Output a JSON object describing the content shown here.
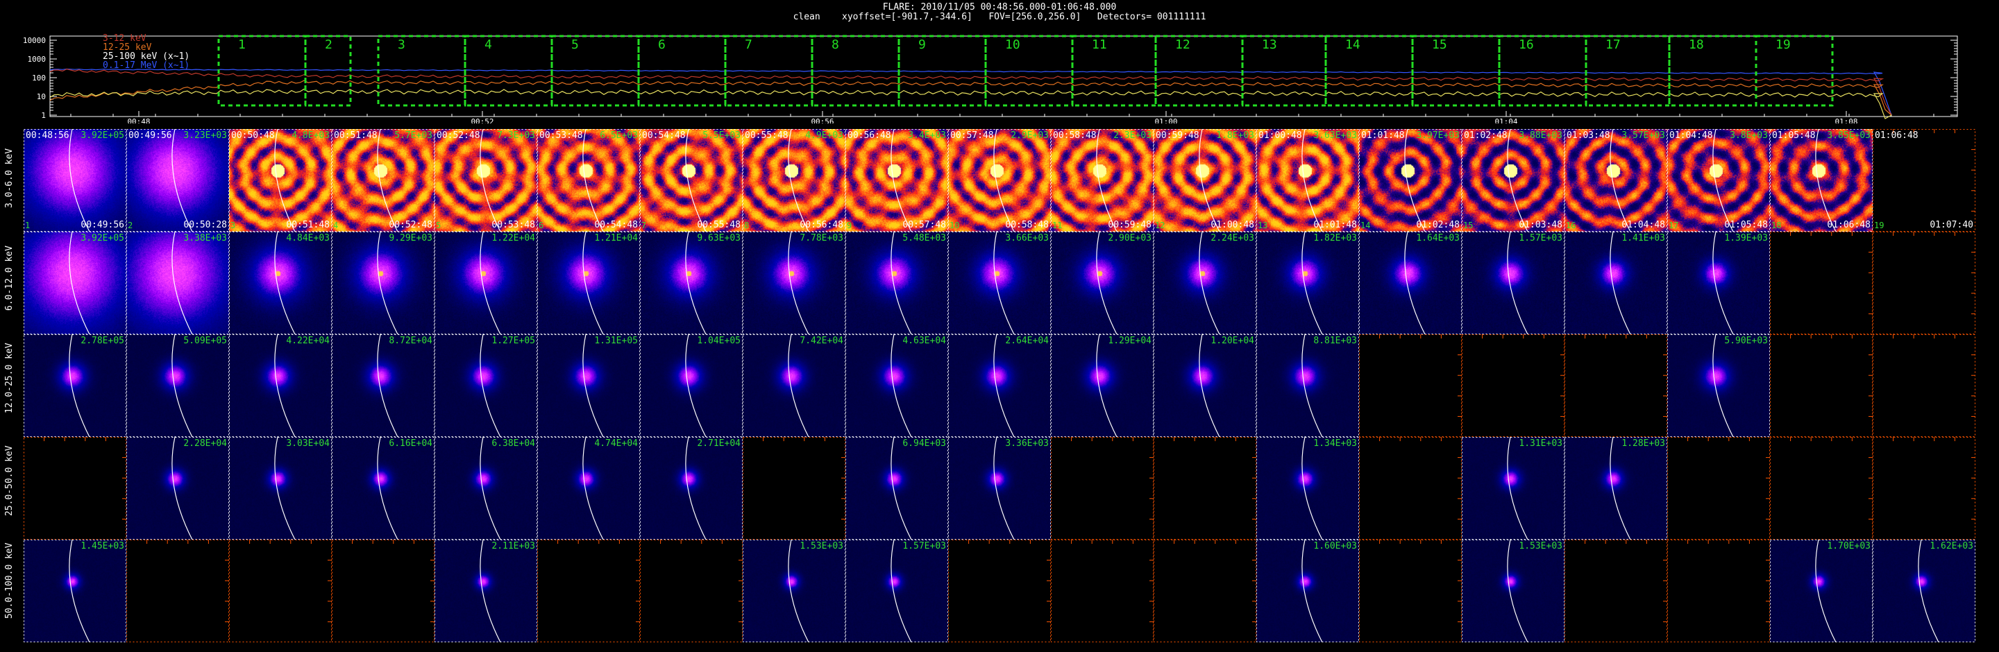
{
  "title_line1": "FLARE: 2010/11/05 00:48:56.000-01:06:48.000",
  "title_line2": "clean    xyoffset=[-901.7,-344.6]   FOV=[256.0,256.0]   Detectors= 001111111",
  "lightcurve": {
    "y_ticks": [
      "10000",
      "1000",
      "100",
      "10",
      "1"
    ],
    "x_ticks": [
      "00:48",
      "00:52",
      "00:56",
      "01:00",
      "01:04",
      "01:08"
    ],
    "legend": [
      {
        "label": "3-12 keV",
        "color": "#c0392b"
      },
      {
        "label": "12-25 keV",
        "color": "#e07020"
      },
      {
        "label": "25-100 keV (x~1)",
        "color": "#e8e060"
      },
      {
        "label": "0.1-17 MeV (x~1)",
        "color": "#3355ff"
      }
    ],
    "intervals": [
      "1",
      "2",
      "3",
      "4",
      "5",
      "6",
      "7",
      "8",
      "9",
      "10",
      "11",
      "12",
      "13",
      "14",
      "15",
      "16",
      "17",
      "18",
      "19"
    ]
  },
  "colors": {
    "interval": "#22dd22",
    "peak": "#33dd33",
    "grid_white": "#ffffff",
    "grid_orange": "#ff5500"
  },
  "energy_bands": [
    "3.0-6.0 keV",
    "6.0-12.0 keV",
    "12.0-25.0 keV",
    "25.0-50.0 keV",
    "50.0-100.0 keV"
  ],
  "time_starts": [
    "00:48:56",
    "00:49:56",
    "00:50:48",
    "00:51:48",
    "00:52:48",
    "00:53:48",
    "00:54:48",
    "00:55:48",
    "00:56:48",
    "00:57:48",
    "00:58:48",
    "00:59:48",
    "01:00:48",
    "01:01:48",
    "01:02:48",
    "01:03:48",
    "01:04:48",
    "01:05:48",
    "01:06:48"
  ],
  "time_ends": [
    "00:49:56",
    "00:50:28",
    "00:51:48",
    "00:52:48",
    "00:53:48",
    "00:54:48",
    "00:55:48",
    "00:56:48",
    "00:57:48",
    "00:58:48",
    "00:59:48",
    "01:00:48",
    "01:01:48",
    "01:02:48",
    "01:03:48",
    "01:04:48",
    "01:05:48",
    "01:06:48",
    "01:07:40"
  ],
  "peaks": [
    [
      "3.92E+05",
      "3.23E+03",
      "4.8E+03",
      "5.7E+03",
      "7.3E+03",
      "6.5E+03",
      "5.5E+03",
      "4.9E+03",
      "3.4E+03",
      "2.9E+03",
      "2.3E+03",
      "1.8E+03",
      "3.63E+03",
      "3.97E+03",
      "3.88E+03",
      "3.57E+03",
      "3.8E+03",
      "3.85E+03",
      ""
    ],
    [
      "3.92E+05",
      "3.38E+03",
      "4.84E+03",
      "9.29E+03",
      "1.22E+04",
      "1.21E+04",
      "9.63E+03",
      "7.78E+03",
      "5.48E+03",
      "3.66E+03",
      "2.90E+03",
      "2.24E+03",
      "1.82E+03",
      "1.64E+03",
      "1.57E+03",
      "1.41E+03",
      "1.39E+03",
      "",
      ""
    ],
    [
      "2.78E+05",
      "5.09E+05",
      "4.22E+04",
      "8.72E+04",
      "1.27E+05",
      "1.31E+05",
      "1.04E+05",
      "7.42E+04",
      "4.63E+04",
      "2.64E+04",
      "1.29E+04",
      "1.20E+04",
      "8.81E+03",
      "",
      "",
      "",
      "5.90E+03",
      "",
      ""
    ],
    [
      "",
      "2.28E+04",
      "3.03E+04",
      "6.16E+04",
      "6.38E+04",
      "4.74E+04",
      "2.71E+04",
      "",
      "6.94E+03",
      "3.36E+03",
      "",
      "",
      "1.34E+03",
      "",
      "1.31E+03",
      "1.28E+03",
      "",
      "",
      ""
    ],
    [
      "1.45E+03",
      "",
      "",
      "",
      "2.11E+03",
      "",
      "",
      "1.53E+03",
      "1.57E+03",
      "",
      "",
      "",
      "1.60E+03",
      "",
      "1.53E+03",
      "",
      "",
      "1.70E+03",
      "1.62E+03"
    ]
  ],
  "row_end_labels": [
    true,
    false,
    false,
    false,
    false
  ]
}
